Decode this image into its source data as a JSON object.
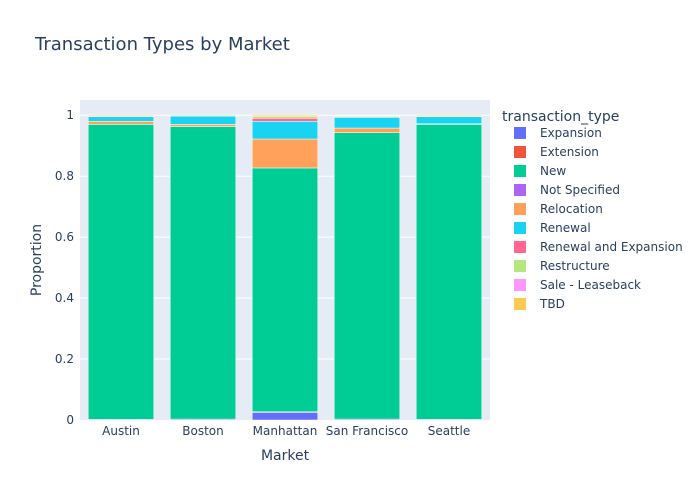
{
  "chart_data": {
    "type": "bar",
    "stacked": true,
    "title": "Transaction Types by Market",
    "xlabel": "Market",
    "ylabel": "Proportion",
    "ylim": [
      0,
      1.05
    ],
    "yticks": [
      0,
      0.2,
      0.4,
      0.6,
      0.8,
      1
    ],
    "ytick_labels": [
      "0",
      "0.2",
      "0.4",
      "0.6",
      "0.8",
      "1"
    ],
    "grid": true,
    "legend_title": "transaction_type",
    "legend_position": "right",
    "categories": [
      "Austin",
      "Boston",
      "Manhattan",
      "San Francisco",
      "Seattle"
    ],
    "series": [
      {
        "name": "Expansion",
        "color": "#636efa",
        "values": [
          0.002,
          0.003,
          0.025,
          0.003,
          0.002
        ]
      },
      {
        "name": "Extension",
        "color": "#EF553B",
        "values": [
          0.0,
          0.0,
          0.002,
          0.0,
          0.0
        ]
      },
      {
        "name": "New",
        "color": "#00cc96",
        "values": [
          0.968,
          0.96,
          0.8,
          0.94,
          0.968
        ]
      },
      {
        "name": "Not Specified",
        "color": "#ab63fa",
        "values": [
          0.0,
          0.0,
          0.0,
          0.0,
          0.0
        ]
      },
      {
        "name": "Relocation",
        "color": "#FFA15A",
        "values": [
          0.01,
          0.007,
          0.095,
          0.015,
          0.002
        ]
      },
      {
        "name": "Renewal",
        "color": "#19d3f3",
        "values": [
          0.015,
          0.027,
          0.058,
          0.035,
          0.023
        ]
      },
      {
        "name": "Renewal and Expansion",
        "color": "#FF6692",
        "values": [
          0.0,
          0.0,
          0.01,
          0.002,
          0.0
        ]
      },
      {
        "name": "Restructure",
        "color": "#B6E880",
        "values": [
          0.002,
          0.003,
          0.005,
          0.003,
          0.002
        ]
      },
      {
        "name": "Sale - Leaseback",
        "color": "#FF97FF",
        "values": [
          0.0,
          0.0,
          0.0,
          0.0,
          0.0
        ]
      },
      {
        "name": "TBD",
        "color": "#FECB52",
        "values": [
          0.003,
          0.0,
          0.005,
          0.002,
          0.003
        ]
      }
    ]
  }
}
